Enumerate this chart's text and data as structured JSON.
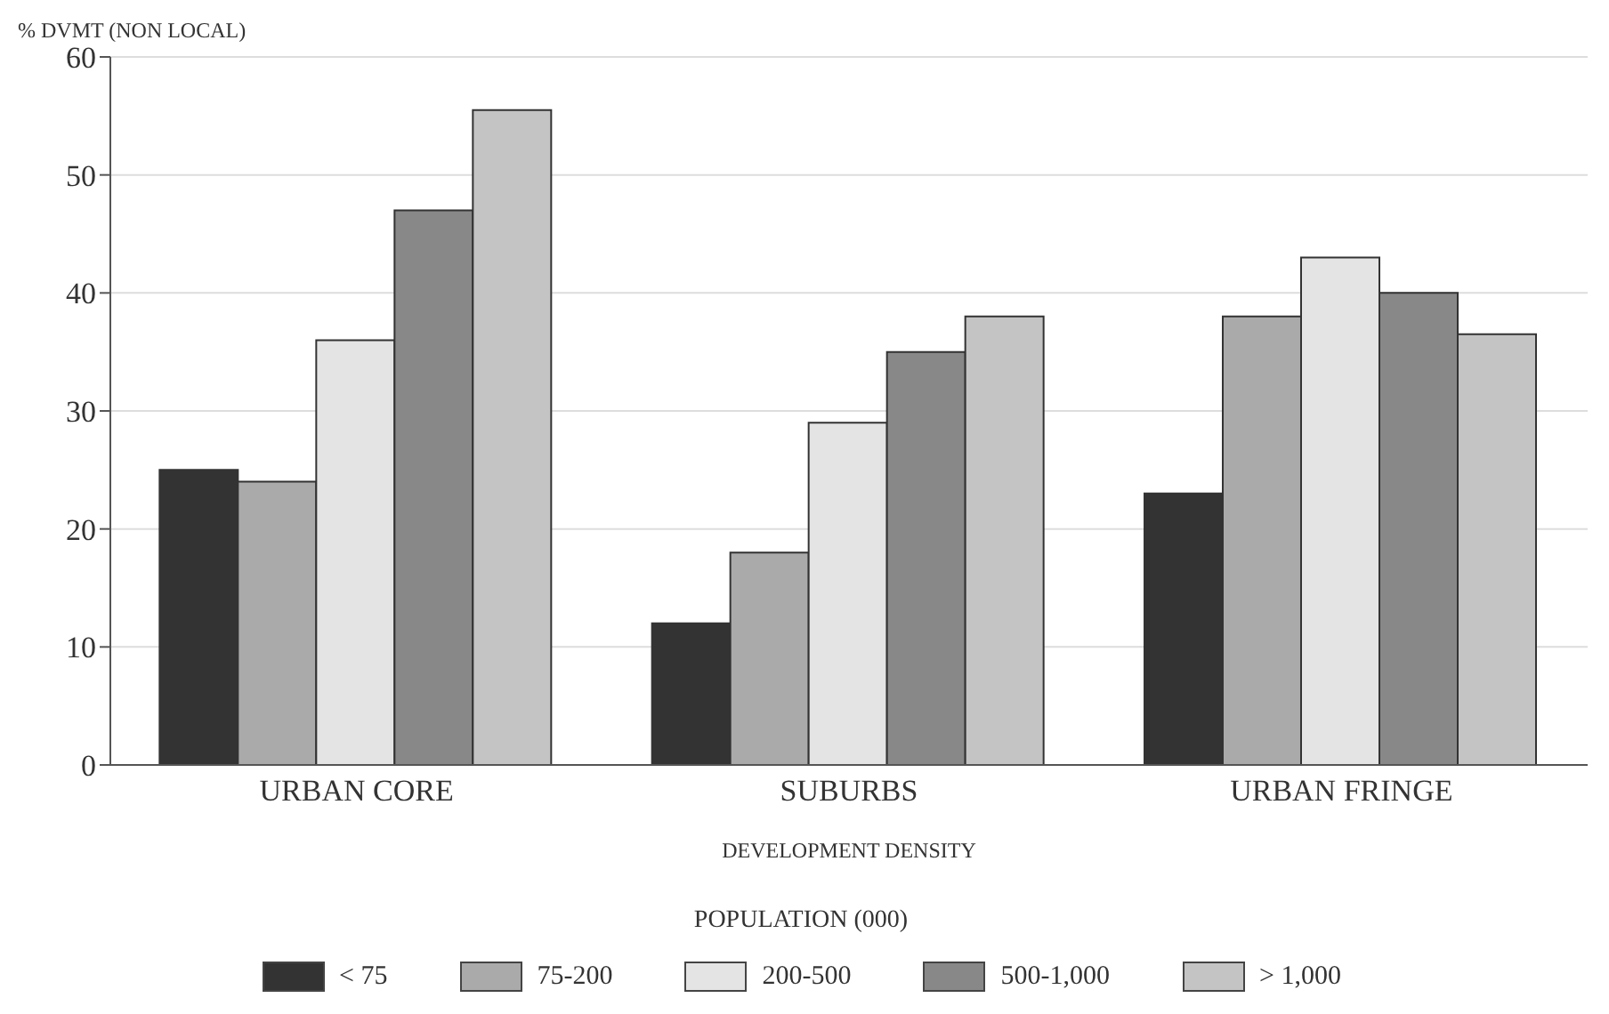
{
  "chart_data": {
    "type": "bar",
    "ylabel": "% DVMT (NON LOCAL)",
    "xlabel": "DEVELOPMENT DENSITY",
    "legend_title": "POPULATION (000)",
    "categories": [
      "URBAN CORE",
      "SUBURBS",
      "URBAN FRINGE"
    ],
    "series": [
      {
        "name": "< 75",
        "color": "#333333",
        "values": [
          25,
          12,
          23
        ]
      },
      {
        "name": "75-200",
        "color": "#aaaaaa",
        "values": [
          24,
          18,
          38
        ]
      },
      {
        "name": "200-500",
        "color": "#e4e4e4",
        "values": [
          36,
          29,
          43
        ]
      },
      {
        "name": "500-1,000",
        "color": "#888888",
        "values": [
          47,
          35,
          40
        ]
      },
      {
        "name": "> 1,000",
        "color": "#c4c4c4",
        "values": [
          55.5,
          38,
          36.5
        ]
      }
    ],
    "ylim": [
      0,
      60
    ],
    "yticks": [
      0,
      10,
      20,
      30,
      40,
      50,
      60
    ],
    "grid": "y",
    "legend": "bottom"
  }
}
